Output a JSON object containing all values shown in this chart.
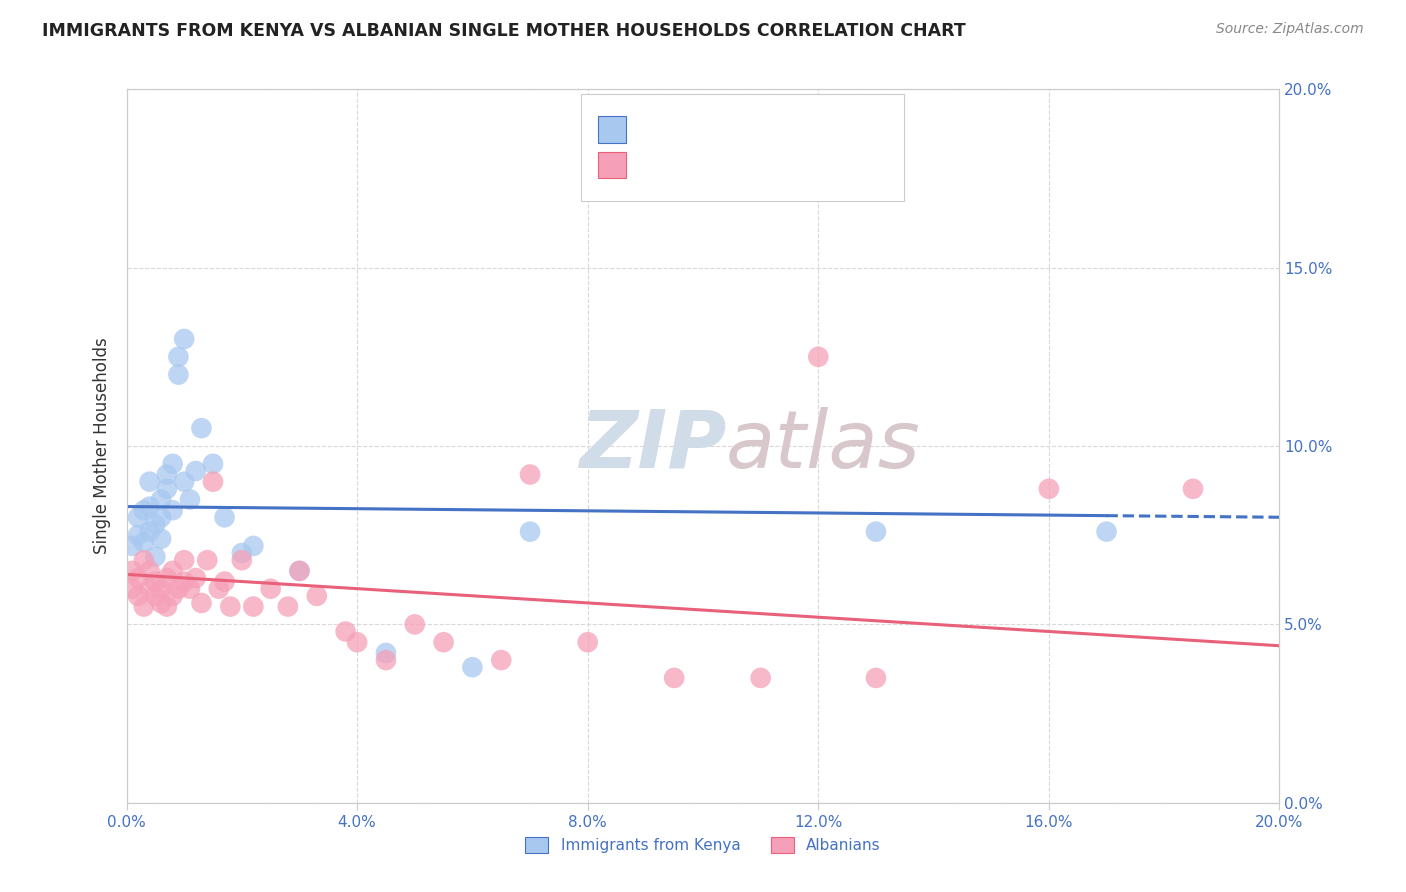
{
  "title": "IMMIGRANTS FROM KENYA VS ALBANIAN SINGLE MOTHER HOUSEHOLDS CORRELATION CHART",
  "source": "Source: ZipAtlas.com",
  "ylabel_label": "Single Mother Households",
  "xlim": [
    0.0,
    0.2
  ],
  "ylim": [
    0.0,
    0.2
  ],
  "xticks": [
    0.0,
    0.04,
    0.08,
    0.12,
    0.16,
    0.2
  ],
  "yticks": [
    0.0,
    0.05,
    0.1,
    0.15,
    0.2
  ],
  "legend_label1": "Immigrants from Kenya",
  "legend_label2": "Albanians",
  "color_blue": "#A8C8F0",
  "color_pink": "#F5A0B8",
  "color_line_blue": "#4472C4",
  "color_line_pink": "#E8607A",
  "color_r_blue": "#4472C4",
  "color_r_pink": "#E8607A",
  "watermark_zip": "ZIP",
  "watermark_atlas": "atlas",
  "background_color": "#FFFFFF",
  "grid_color": "#D8D8D8",
  "kenya_x": [
    0.001,
    0.002,
    0.002,
    0.003,
    0.003,
    0.004,
    0.004,
    0.004,
    0.005,
    0.005,
    0.006,
    0.006,
    0.006,
    0.007,
    0.007,
    0.008,
    0.008,
    0.009,
    0.009,
    0.01,
    0.01,
    0.011,
    0.012,
    0.013,
    0.015,
    0.017,
    0.02,
    0.022,
    0.03,
    0.045,
    0.06,
    0.07,
    0.13,
    0.17
  ],
  "kenya_y": [
    0.072,
    0.075,
    0.08,
    0.073,
    0.082,
    0.076,
    0.083,
    0.09,
    0.069,
    0.078,
    0.074,
    0.08,
    0.085,
    0.092,
    0.088,
    0.082,
    0.095,
    0.12,
    0.125,
    0.13,
    0.09,
    0.085,
    0.093,
    0.105,
    0.095,
    0.08,
    0.07,
    0.072,
    0.065,
    0.042,
    0.038,
    0.076,
    0.076,
    0.076
  ],
  "albanian_x": [
    0.001,
    0.001,
    0.002,
    0.002,
    0.003,
    0.003,
    0.004,
    0.004,
    0.005,
    0.005,
    0.006,
    0.006,
    0.007,
    0.007,
    0.008,
    0.008,
    0.009,
    0.01,
    0.01,
    0.011,
    0.012,
    0.013,
    0.014,
    0.015,
    0.016,
    0.017,
    0.018,
    0.02,
    0.022,
    0.025,
    0.028,
    0.03,
    0.033,
    0.038,
    0.04,
    0.045,
    0.05,
    0.055,
    0.065,
    0.07,
    0.08,
    0.095,
    0.11,
    0.12,
    0.13,
    0.16,
    0.185
  ],
  "albanian_y": [
    0.06,
    0.065,
    0.058,
    0.063,
    0.055,
    0.068,
    0.06,
    0.065,
    0.058,
    0.062,
    0.056,
    0.06,
    0.055,
    0.063,
    0.058,
    0.065,
    0.06,
    0.062,
    0.068,
    0.06,
    0.063,
    0.056,
    0.068,
    0.09,
    0.06,
    0.062,
    0.055,
    0.068,
    0.055,
    0.06,
    0.055,
    0.065,
    0.058,
    0.048,
    0.045,
    0.04,
    0.05,
    0.045,
    0.04,
    0.092,
    0.045,
    0.035,
    0.035,
    0.125,
    0.035,
    0.088,
    0.088
  ]
}
